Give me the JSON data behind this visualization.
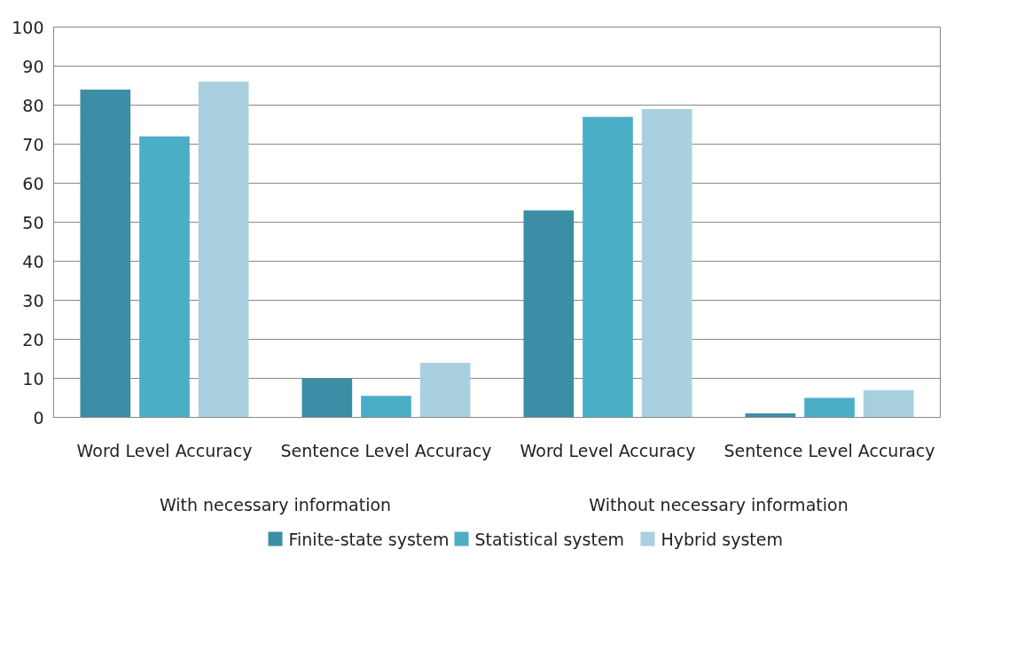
{
  "chart_data": {
    "type": "bar",
    "categories": [
      "Word Level Accuracy",
      "Sentence Level Accuracy",
      "Word Level Accuracy",
      "Sentence Level Accuracy"
    ],
    "series": [
      {
        "name": "Finite-state system",
        "color": "#3b8ea5",
        "values": [
          84,
          10,
          53,
          1
        ]
      },
      {
        "name": "Statistical system",
        "color": "#4aaec7",
        "values": [
          72,
          5.5,
          77,
          5
        ]
      },
      {
        "name": "Hybrid system",
        "color": "#a9d0de",
        "values": [
          86,
          14,
          79,
          7
        ]
      }
    ],
    "annotations": [
      "With necessary information",
      "Without necessary information"
    ],
    "ylim": [
      0,
      100
    ],
    "yticks": [
      0,
      10,
      20,
      30,
      40,
      50,
      60,
      70,
      80,
      90,
      100
    ],
    "grid": "y",
    "legend": "bottom"
  }
}
